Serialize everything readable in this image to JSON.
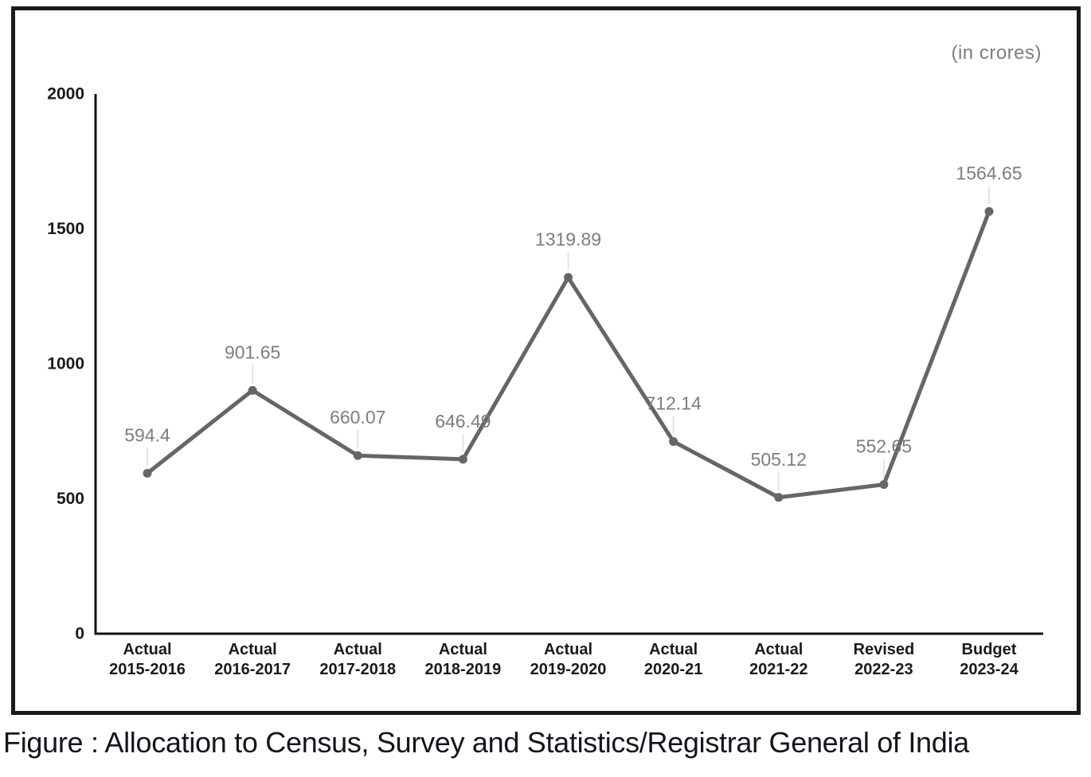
{
  "figure": {
    "unit_label": "(in crores)",
    "caption": "Figure : Allocation to Census, Survey and Statistics/Registrar General of India"
  },
  "chart_data": {
    "type": "line",
    "title": "Allocation to Census, Survey and Statistics/Registrar General of India",
    "unit": "(in crores)",
    "categories": [
      [
        "Actual",
        "2015-2016"
      ],
      [
        "Actual",
        "2016-2017"
      ],
      [
        "Actual",
        "2017-2018"
      ],
      [
        "Actual",
        "2018-2019"
      ],
      [
        "Actual",
        "2019-2020"
      ],
      [
        "Actual",
        "2020-21"
      ],
      [
        "Actual",
        "2021-22"
      ],
      [
        "Revised",
        "2022-23"
      ],
      [
        "Budget",
        "2023-24"
      ]
    ],
    "values": [
      594.4,
      901.65,
      660.07,
      646.49,
      1319.89,
      712.14,
      505.12,
      552.65,
      1564.65
    ],
    "data_labels": [
      "594.4",
      "901.65",
      "660.07",
      "646.49",
      "1319.89",
      "712.14",
      "505.12",
      "552.65",
      "1564.65"
    ],
    "xlabel": "",
    "ylabel": "",
    "ylim": [
      0,
      2000
    ],
    "yticks": [
      0,
      500,
      1000,
      1500,
      2000
    ],
    "grid": false,
    "legend_position": "none",
    "colors": {
      "line": "#666666",
      "point": "#666666",
      "data_label": "#7d7d7d",
      "axis": "#111111",
      "axis_text": "#1a1a1a",
      "whisker": "#e4e4e4"
    }
  }
}
